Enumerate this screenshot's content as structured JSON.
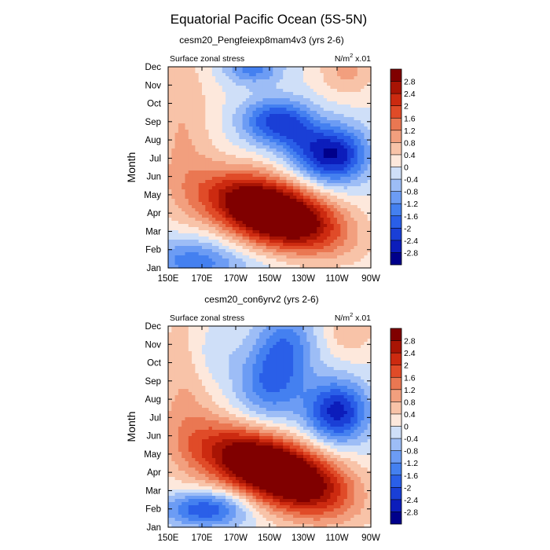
{
  "figure": {
    "title": "Equatorial Pacific Ocean (5S-5N)"
  },
  "chart_data": [
    {
      "type": "heatmap",
      "subtitle": "cesm20_Pengfeiexp8mam4v3 (yrs 2-6)",
      "left_label": "Surface zonal stress",
      "units_base": "N/m",
      "units_exp": "2",
      "units_scale": "x.01",
      "ylabel": "Month",
      "x_ticks": [
        "150E",
        "170E",
        "170W",
        "150W",
        "130W",
        "110W",
        "90W"
      ],
      "x_values": [
        150,
        170,
        190,
        210,
        230,
        250,
        270
      ],
      "y_ticks": [
        "Jan",
        "Feb",
        "Mar",
        "Apr",
        "May",
        "Jun",
        "Jul",
        "Aug",
        "Sep",
        "Oct",
        "Nov",
        "Dec"
      ],
      "features": [
        {
          "lon": 210,
          "month": 3.0,
          "sx": 26,
          "sy": 1.25,
          "amp": 3.1,
          "rot": -0.18
        },
        {
          "lon": 195,
          "month": 4.0,
          "sx": 22,
          "sy": 1.2,
          "amp": 0.9,
          "rot": -0.18
        },
        {
          "lon": 228,
          "month": 2.4,
          "sx": 24,
          "sy": 1.2,
          "amp": 1.2,
          "rot": -0.2
        },
        {
          "lon": 248,
          "month": 6.2,
          "sx": 14,
          "sy": 1.1,
          "amp": -2.8,
          "rot": 0
        },
        {
          "lon": 213,
          "month": 8.0,
          "sx": 14,
          "sy": 0.9,
          "amp": -2.1,
          "rot": 0
        },
        {
          "lon": 228,
          "month": 7.0,
          "sx": 10,
          "sy": 1.1,
          "amp": -0.8,
          "rot": 0
        },
        {
          "lon": 162,
          "month": 0.6,
          "sx": 18,
          "sy": 0.9,
          "amp": -1.2,
          "rot": 0
        },
        {
          "lon": 200,
          "month": 10.9,
          "sx": 12,
          "sy": 0.6,
          "amp": -1.4,
          "rot": 0
        },
        {
          "lon": 158,
          "month": 7.5,
          "sx": 13,
          "sy": 3.5,
          "amp": 0.8,
          "rot": 0
        },
        {
          "lon": 256,
          "month": 10.8,
          "sx": 12,
          "sy": 1.0,
          "amp": 0.9,
          "rot": 0
        },
        {
          "lon": 180,
          "month": 0.2,
          "sx": 25,
          "sy": 0.5,
          "amp": -0.5,
          "rot": 0
        }
      ]
    },
    {
      "type": "heatmap",
      "subtitle": "cesm20_con6yrv2 (yrs 2-6)",
      "left_label": "Surface zonal stress",
      "units_base": "N/m",
      "units_exp": "2",
      "units_scale": "x.01",
      "ylabel": "Month",
      "x_ticks": [
        "150E",
        "170E",
        "170W",
        "150W",
        "130W",
        "110W",
        "90W"
      ],
      "x_values": [
        150,
        170,
        190,
        210,
        230,
        250,
        270
      ],
      "y_ticks": [
        "Jan",
        "Feb",
        "Mar",
        "Apr",
        "May",
        "Jun",
        "Jul",
        "Aug",
        "Sep",
        "Oct",
        "Nov",
        "Dec"
      ],
      "features": [
        {
          "lon": 212,
          "month": 3.1,
          "sx": 28,
          "sy": 1.3,
          "amp": 3.2,
          "rot": -0.2
        },
        {
          "lon": 192,
          "month": 4.2,
          "sx": 22,
          "sy": 1.2,
          "amp": 1.1,
          "rot": -0.2
        },
        {
          "lon": 232,
          "month": 2.0,
          "sx": 22,
          "sy": 1.3,
          "amp": 1.3,
          "rot": -0.2
        },
        {
          "lon": 250,
          "month": 6.3,
          "sx": 13,
          "sy": 1.2,
          "amp": -2.6,
          "rot": 0
        },
        {
          "lon": 210,
          "month": 7.8,
          "sx": 14,
          "sy": 1.5,
          "amp": -1.5,
          "rot": 0
        },
        {
          "lon": 220,
          "month": 10.0,
          "sx": 12,
          "sy": 1.4,
          "amp": -1.3,
          "rot": 0
        },
        {
          "lon": 172,
          "month": 1.0,
          "sx": 18,
          "sy": 0.7,
          "amp": -2.1,
          "rot": 0
        },
        {
          "lon": 160,
          "month": 7.5,
          "sx": 13,
          "sy": 3.5,
          "amp": 0.8,
          "rot": 0
        },
        {
          "lon": 258,
          "month": 10.8,
          "sx": 10,
          "sy": 1.0,
          "amp": 0.8,
          "rot": 0
        },
        {
          "lon": 175,
          "month": 9.5,
          "sx": 10,
          "sy": 1.2,
          "amp": -0.5,
          "rot": 0
        }
      ]
    }
  ],
  "colorbar": {
    "levels": [
      -2.8,
      -2.4,
      -2,
      -1.6,
      -1.2,
      -0.8,
      -0.4,
      0,
      0.4,
      0.8,
      1.2,
      1.6,
      2,
      2.4,
      2.8
    ],
    "labels": [
      "-2.8",
      "-2.4",
      "-2",
      "-1.6",
      "-1.2",
      "-0.8",
      "-0.4",
      "0",
      "0.4",
      "0.8",
      "1.2",
      "1.6",
      "2",
      "2.4",
      "2.8"
    ],
    "colors": [
      "#00008b",
      "#0c1dbb",
      "#1a3fd6",
      "#2a5fe8",
      "#4480f0",
      "#6c9cf4",
      "#9dbdf6",
      "#cfdff8",
      "#fde8dc",
      "#f8c3a8",
      "#f29f7e",
      "#ea7752",
      "#e04b28",
      "#cc2a10",
      "#a81404",
      "#800000"
    ]
  }
}
